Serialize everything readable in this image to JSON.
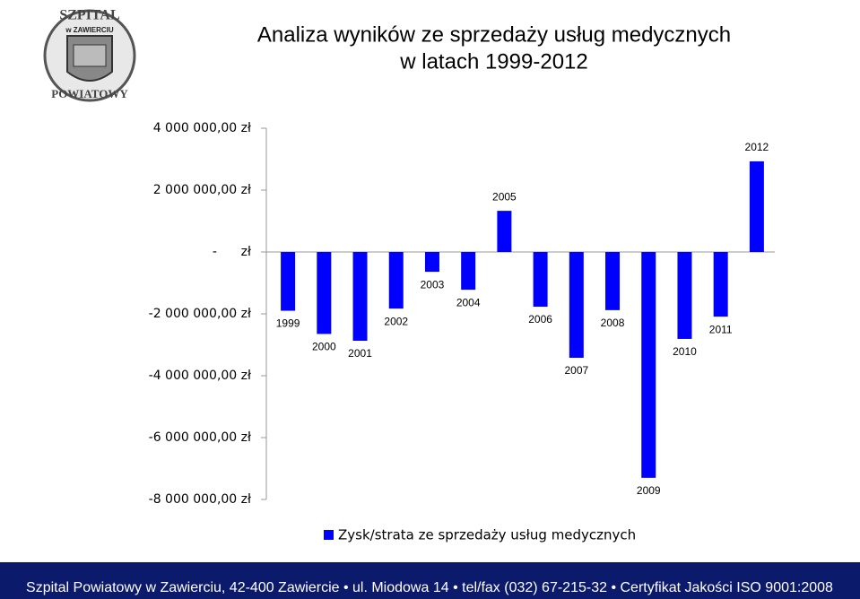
{
  "logo": {
    "top": "SZPITAL",
    "middle": "w ZAWIERCIU",
    "bottom": "POWIATOWY"
  },
  "chart_data": {
    "type": "bar",
    "title": [
      "Analiza wyników ze sprzedaży usług medycznych",
      "w latach 1999-2012"
    ],
    "categories": [
      "1999",
      "2000",
      "2001",
      "2002",
      "2003",
      "2004",
      "2005",
      "2006",
      "2007",
      "2008",
      "2009",
      "2010",
      "2011",
      "2012"
    ],
    "series": [
      {
        "name": "Zysk/strata ze sprzedaży usług medycznych",
        "color": "#0000ff",
        "values": [
          -1900000,
          -2650000,
          -2870000,
          -1830000,
          -640000,
          -1220000,
          1330000,
          -1770000,
          -3420000,
          -1880000,
          -7300000,
          -2810000,
          -2090000,
          2930000
        ]
      }
    ],
    "ylim": [
      -8000000,
      4000000
    ],
    "yticks": [
      {
        "value": -8000000,
        "label": "-8 000 000,00 zł"
      },
      {
        "value": -6000000,
        "label": "-6 000 000,00 zł"
      },
      {
        "value": -4000000,
        "label": "-4 000 000,00 zł"
      },
      {
        "value": -2000000,
        "label": "-2 000 000,00 zł"
      },
      {
        "value": 0,
        "label": "-      zł"
      },
      {
        "value": 2000000,
        "label": "2 000 000,00 zł"
      },
      {
        "value": 4000000,
        "label": "4 000 000,00 zł"
      }
    ],
    "legend": "bottom"
  },
  "footer": "Szpital Powiatowy w Zawierciu, 42-400 Zawiercie  •  ul. Miodowa 14  •  tel/fax (032) 67-215-32  •  Certyfikat Jakości ISO 9001:2008"
}
